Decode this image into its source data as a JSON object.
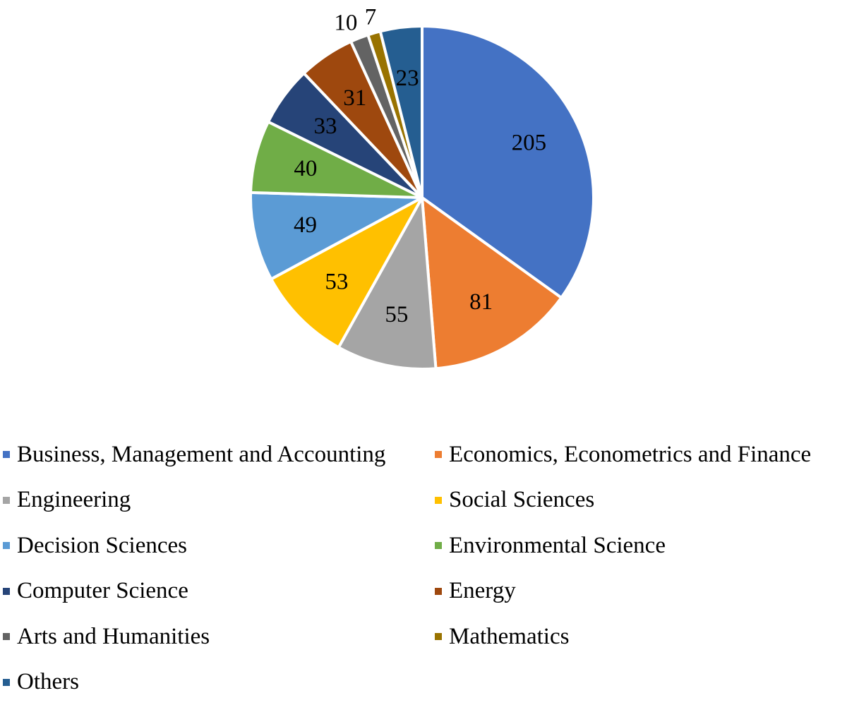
{
  "chart_data": {
    "type": "pie",
    "title": "",
    "start_angle_deg": 0,
    "direction": "clockwise",
    "slices": [
      {
        "label": "Business, Management and Accounting",
        "value": 205,
        "color": "#4472C4",
        "data_label": "205",
        "label_color": "#000000"
      },
      {
        "label": "Economics, Econometrics and Finance",
        "value": 81,
        "color": "#ED7D31",
        "data_label": "81",
        "label_color": "#000000"
      },
      {
        "label": "Engineering",
        "value": 55,
        "color": "#A5A5A5",
        "data_label": "55",
        "label_color": "#000000"
      },
      {
        "label": "Social Sciences",
        "value": 53,
        "color": "#FFC000",
        "data_label": "53",
        "label_color": "#000000"
      },
      {
        "label": "Decision Sciences",
        "value": 49,
        "color": "#5B9BD5",
        "data_label": "49",
        "label_color": "#000000"
      },
      {
        "label": "Environmental Science",
        "value": 40,
        "color": "#70AD47",
        "data_label": "40",
        "label_color": "#000000"
      },
      {
        "label": "Computer Science",
        "value": 33,
        "color": "#264478",
        "data_label": "33",
        "label_color": "#000000"
      },
      {
        "label": "Energy",
        "value": 31,
        "color": "#9E480E",
        "data_label": "31",
        "label_color": "#000000"
      },
      {
        "label": "Arts and Humanities",
        "value": 10,
        "color": "#636363",
        "data_label": "10",
        "label_color": "#000000"
      },
      {
        "label": "Mathematics",
        "value": 7,
        "color": "#997300",
        "data_label": "7",
        "label_color": "#000000"
      },
      {
        "label": "Others",
        "value": 23,
        "color": "#255E91",
        "data_label": "23",
        "label_color": "#000000"
      }
    ],
    "legend_position": "bottom",
    "legend_columns": 2
  }
}
